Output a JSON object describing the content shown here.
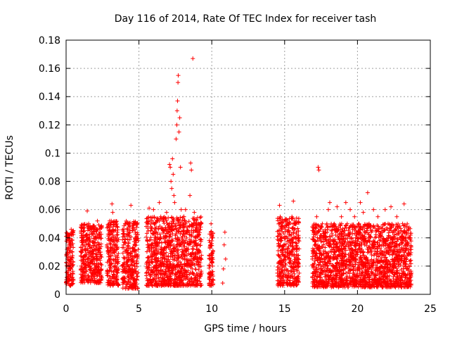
{
  "chart_data": {
    "type": "scatter",
    "title": "Day 116 of 2014, Rate Of TEC Index for receiver tash",
    "xlabel": "GPS time / hours",
    "ylabel": "ROTI / TECUs",
    "xlim": [
      0,
      25
    ],
    "ylim": [
      0,
      0.18
    ],
    "xticks": [
      0,
      5,
      10,
      15,
      20,
      25
    ],
    "xtick_labels": [
      "0",
      "5",
      "10",
      "15",
      "20",
      "25"
    ],
    "yticks": [
      0,
      0.02,
      0.04,
      0.06,
      0.08,
      0.1,
      0.12,
      0.14,
      0.16,
      0.18
    ],
    "ytick_labels": [
      "0",
      "0.02",
      "0.04",
      "0.06",
      "0.08",
      "0.1",
      "0.12",
      "0.14",
      "0.16",
      "0.18"
    ],
    "grid": true,
    "marker": "+",
    "marker_color": "#ff0000",
    "series": [
      {
        "name": "ROTI",
        "points": [
          [
            0.05,
            0.012
          ],
          [
            0.1,
            0.025
          ],
          [
            0.15,
            0.018
          ],
          [
            0.2,
            0.035
          ],
          [
            0.25,
            0.042
          ],
          [
            0.3,
            0.022
          ],
          [
            0.35,
            0.046
          ],
          [
            0.4,
            0.03
          ],
          [
            0.45,
            0.015
          ],
          [
            0.5,
            0.01
          ],
          [
            1.05,
            0.02
          ],
          [
            1.15,
            0.035
          ],
          [
            1.25,
            0.045
          ],
          [
            1.35,
            0.028
          ],
          [
            1.45,
            0.059
          ],
          [
            1.55,
            0.05
          ],
          [
            1.65,
            0.038
          ],
          [
            1.75,
            0.025
          ],
          [
            1.85,
            0.048
          ],
          [
            1.95,
            0.015
          ],
          [
            2.05,
            0.032
          ],
          [
            2.15,
            0.052
          ],
          [
            2.25,
            0.042
          ],
          [
            2.35,
            0.022
          ],
          [
            2.45,
            0.012
          ],
          [
            2.8,
            0.015
          ],
          [
            2.9,
            0.03
          ],
          [
            3.0,
            0.045
          ],
          [
            3.1,
            0.052
          ],
          [
            3.15,
            0.064
          ],
          [
            3.2,
            0.058
          ],
          [
            3.3,
            0.038
          ],
          [
            3.4,
            0.025
          ],
          [
            3.5,
            0.048
          ],
          [
            3.6,
            0.018
          ],
          [
            3.85,
            0.02
          ],
          [
            3.95,
            0.035
          ],
          [
            4.05,
            0.05
          ],
          [
            4.15,
            0.042
          ],
          [
            4.25,
            0.028
          ],
          [
            4.35,
            0.015
          ],
          [
            4.45,
            0.063
          ],
          [
            4.55,
            0.045
          ],
          [
            4.65,
            0.032
          ],
          [
            4.75,
            0.008
          ],
          [
            4.85,
            0.022
          ],
          [
            4.95,
            0.038
          ],
          [
            5.5,
            0.015
          ],
          [
            5.6,
            0.035
          ],
          [
            5.7,
            0.061
          ],
          [
            5.8,
            0.045
          ],
          [
            5.9,
            0.028
          ],
          [
            6.0,
            0.06
          ],
          [
            6.1,
            0.05
          ],
          [
            6.2,
            0.02
          ],
          [
            6.3,
            0.04
          ],
          [
            6.4,
            0.065
          ],
          [
            6.5,
            0.055
          ],
          [
            6.6,
            0.03
          ],
          [
            6.7,
            0.045
          ],
          [
            6.8,
            0.025
          ],
          [
            6.9,
            0.058
          ],
          [
            7.0,
            0.035
          ],
          [
            7.1,
            0.092
          ],
          [
            7.15,
            0.09
          ],
          [
            7.2,
            0.08
          ],
          [
            7.25,
            0.075
          ],
          [
            7.3,
            0.096
          ],
          [
            7.35,
            0.085
          ],
          [
            7.4,
            0.07
          ],
          [
            7.45,
            0.065
          ],
          [
            7.5,
            0.048
          ],
          [
            7.55,
            0.11
          ],
          [
            7.6,
            0.12
          ],
          [
            7.62,
            0.13
          ],
          [
            7.65,
            0.137
          ],
          [
            7.68,
            0.15
          ],
          [
            7.7,
            0.155
          ],
          [
            7.75,
            0.115
          ],
          [
            7.8,
            0.125
          ],
          [
            7.85,
            0.09
          ],
          [
            7.9,
            0.06
          ],
          [
            7.95,
            0.04
          ],
          [
            8.0,
            0.03
          ],
          [
            8.1,
            0.05
          ],
          [
            8.2,
            0.06
          ],
          [
            8.3,
            0.045
          ],
          [
            8.4,
            0.035
          ],
          [
            8.5,
            0.07
          ],
          [
            8.55,
            0.093
          ],
          [
            8.6,
            0.088
          ],
          [
            8.7,
            0.167
          ],
          [
            8.8,
            0.058
          ],
          [
            8.9,
            0.04
          ],
          [
            9.0,
            0.025
          ],
          [
            9.1,
            0.05
          ],
          [
            9.2,
            0.03
          ],
          [
            9.3,
            0.015
          ],
          [
            9.8,
            0.015
          ],
          [
            9.85,
            0.025
          ],
          [
            9.9,
            0.035
          ],
          [
            9.95,
            0.05
          ],
          [
            10.0,
            0.04
          ],
          [
            10.05,
            0.02
          ],
          [
            10.1,
            0.01
          ],
          [
            10.75,
            0.008
          ],
          [
            10.8,
            0.018
          ],
          [
            10.85,
            0.035
          ],
          [
            10.9,
            0.044
          ],
          [
            10.95,
            0.025
          ],
          [
            14.5,
            0.015
          ],
          [
            14.55,
            0.028
          ],
          [
            14.6,
            0.045
          ],
          [
            14.65,
            0.063
          ],
          [
            14.7,
            0.055
          ],
          [
            14.75,
            0.038
          ],
          [
            14.8,
            0.02
          ],
          [
            14.9,
            0.012
          ],
          [
            15.2,
            0.03
          ],
          [
            15.3,
            0.045
          ],
          [
            15.4,
            0.038
          ],
          [
            15.5,
            0.055
          ],
          [
            15.6,
            0.066
          ],
          [
            15.7,
            0.05
          ],
          [
            15.8,
            0.04
          ],
          [
            15.9,
            0.025
          ],
          [
            16.0,
            0.015
          ],
          [
            16.9,
            0.025
          ],
          [
            17.0,
            0.045
          ],
          [
            17.1,
            0.035
          ],
          [
            17.2,
            0.055
          ],
          [
            17.3,
            0.09
          ],
          [
            17.35,
            0.088
          ],
          [
            17.4,
            0.04
          ],
          [
            17.5,
            0.02
          ],
          [
            17.6,
            0.015
          ],
          [
            17.8,
            0.03
          ],
          [
            17.9,
            0.05
          ],
          [
            18.0,
            0.06
          ],
          [
            18.1,
            0.065
          ],
          [
            18.2,
            0.045
          ],
          [
            18.3,
            0.025
          ],
          [
            18.4,
            0.05
          ],
          [
            18.5,
            0.035
          ],
          [
            18.6,
            0.062
          ],
          [
            18.7,
            0.04
          ],
          [
            18.8,
            0.02
          ],
          [
            18.9,
            0.055
          ],
          [
            19.0,
            0.03
          ],
          [
            19.1,
            0.045
          ],
          [
            19.2,
            0.065
          ],
          [
            19.3,
            0.05
          ],
          [
            19.4,
            0.035
          ],
          [
            19.5,
            0.06
          ],
          [
            19.6,
            0.04
          ],
          [
            19.7,
            0.025
          ],
          [
            19.8,
            0.055
          ],
          [
            19.9,
            0.045
          ],
          [
            20.0,
            0.03
          ],
          [
            20.1,
            0.05
          ],
          [
            20.2,
            0.065
          ],
          [
            20.3,
            0.04
          ],
          [
            20.4,
            0.058
          ],
          [
            20.5,
            0.035
          ],
          [
            20.6,
            0.02
          ],
          [
            20.7,
            0.072
          ],
          [
            20.8,
            0.05
          ],
          [
            20.9,
            0.03
          ],
          [
            21.0,
            0.045
          ],
          [
            21.1,
            0.06
          ],
          [
            21.2,
            0.04
          ],
          [
            21.3,
            0.025
          ],
          [
            21.4,
            0.055
          ],
          [
            21.5,
            0.035
          ],
          [
            21.6,
            0.015
          ],
          [
            21.7,
            0.005
          ],
          [
            21.8,
            0.045
          ],
          [
            21.9,
            0.06
          ],
          [
            22.0,
            0.03
          ],
          [
            22.1,
            0.05
          ],
          [
            22.2,
            0.035
          ],
          [
            22.3,
            0.062
          ],
          [
            22.4,
            0.04
          ],
          [
            22.5,
            0.02
          ],
          [
            22.6,
            0.045
          ],
          [
            22.7,
            0.055
          ],
          [
            22.8,
            0.03
          ],
          [
            22.9,
            0.04
          ],
          [
            23.0,
            0.025
          ],
          [
            23.1,
            0.05
          ],
          [
            23.2,
            0.064
          ],
          [
            23.3,
            0.035
          ],
          [
            23.4,
            0.045
          ],
          [
            23.5,
            0.02
          ],
          [
            23.6,
            0.04
          ],
          [
            23.7,
            0.015
          ]
        ]
      }
    ],
    "dense_clusters": [
      {
        "x_range": [
          0.0,
          0.5
        ],
        "y_range": [
          0.006,
          0.046
        ]
      },
      {
        "x_range": [
          1.0,
          2.45
        ],
        "y_range": [
          0.008,
          0.05
        ]
      },
      {
        "x_range": [
          2.8,
          3.6
        ],
        "y_range": [
          0.006,
          0.052
        ]
      },
      {
        "x_range": [
          3.85,
          4.95
        ],
        "y_range": [
          0.004,
          0.052
        ]
      },
      {
        "x_range": [
          5.5,
          9.3
        ],
        "y_range": [
          0.006,
          0.055
        ]
      },
      {
        "x_range": [
          9.8,
          10.1
        ],
        "y_range": [
          0.006,
          0.045
        ]
      },
      {
        "x_range": [
          14.5,
          16.0
        ],
        "y_range": [
          0.006,
          0.055
        ]
      },
      {
        "x_range": [
          16.9,
          23.7
        ],
        "y_range": [
          0.005,
          0.05
        ]
      }
    ]
  }
}
